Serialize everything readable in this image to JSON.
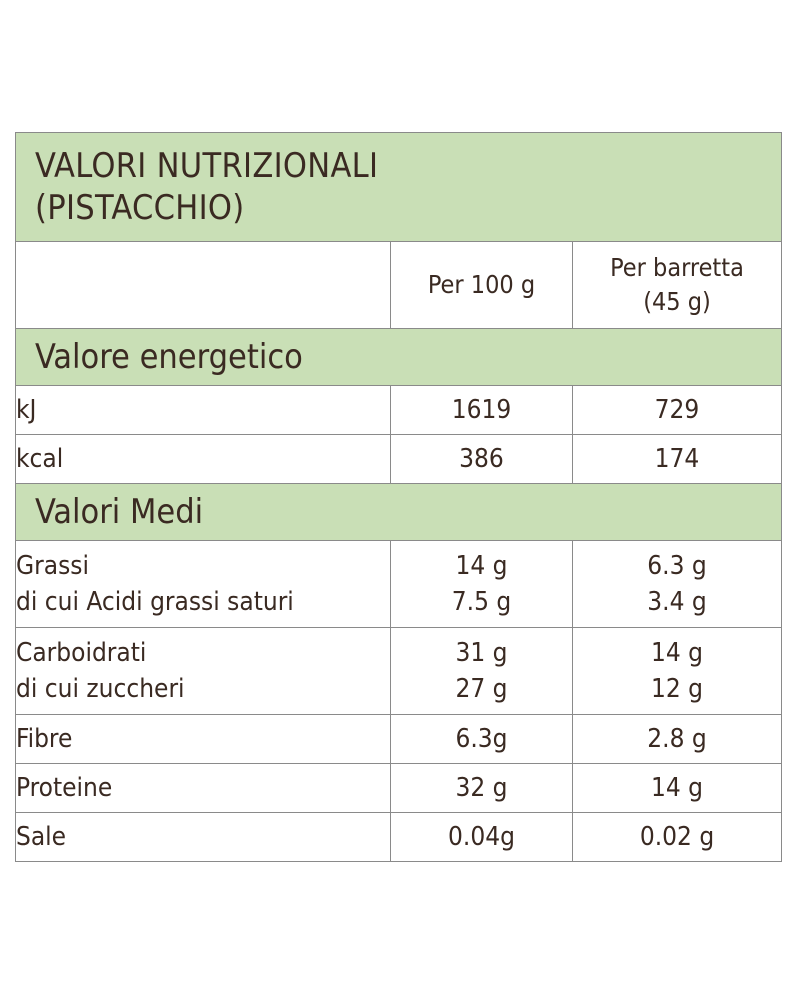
{
  "title_line1": "VALORI NUTRIZIONALI",
  "title_line2": "(PISTACCHIO)",
  "columns": {
    "per100": "Per 100 g",
    "perbar_line1": "Per barretta",
    "perbar_line2": "(45 g)"
  },
  "sections": {
    "energy": "Valore energetico",
    "averages": "Valori Medi"
  },
  "energy_rows": [
    {
      "label": "kJ",
      "per100": "1619",
      "perbar": "729"
    },
    {
      "label": "kcal",
      "per100": "386",
      "perbar": "174"
    }
  ],
  "fats": {
    "label1": "Grassi",
    "label2": "di cui Acidi grassi saturi",
    "per100_1": "14 g",
    "per100_2": "7.5 g",
    "perbar_1": "6.3 g",
    "perbar_2": "3.4 g"
  },
  "carbs": {
    "label1": "Carboidrati",
    "label2": "di cui zuccheri",
    "per100_1": "31 g",
    "per100_2": "27 g",
    "perbar_1": "14 g",
    "perbar_2": "12 g"
  },
  "fibre": {
    "label": "Fibre",
    "per100": "6.3g",
    "perbar": "2.8 g"
  },
  "protein": {
    "label": "Proteine",
    "per100": "32 g",
    "perbar": "14 g"
  },
  "salt": {
    "label": "Sale",
    "per100": "0.04g",
    "perbar": "0.02 g"
  },
  "colors": {
    "band": "#c9dfb6",
    "text": "#3a2a22",
    "border": "#8a8a8a"
  }
}
